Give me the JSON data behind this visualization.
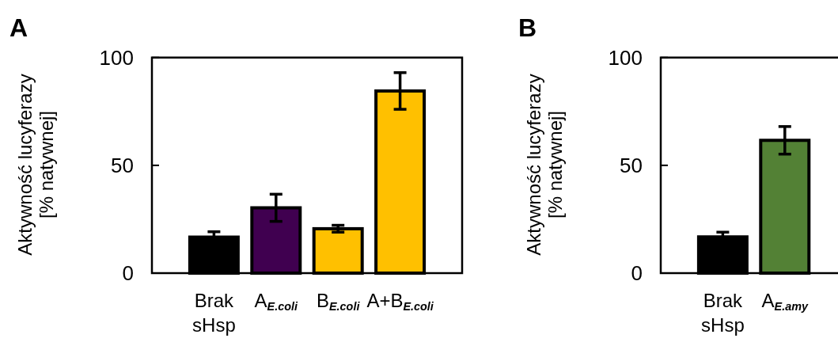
{
  "chart_data": [
    {
      "type": "bar",
      "title": "A",
      "ylabel": "Aktywność lucyferazy\n[% natywnej]",
      "categories": [
        "Brak\nsHsp",
        "A$_{E.coli}$",
        "B$_{E.coli}$",
        "A+B$_{E.coli}$"
      ],
      "colors": [
        "#000000",
        "#400050",
        "#ffc000",
        "#ffc000"
      ],
      "values": [
        16.7,
        30.3,
        20.6,
        84.5
      ],
      "errors": [
        2.5,
        6.3,
        1.6,
        8.5
      ],
      "ylim": [
        0,
        100
      ],
      "yticks": [
        0,
        50,
        100
      ]
    },
    {
      "type": "bar",
      "title": "B",
      "ylabel": "Aktywność lucyferazy\n[% natywnej]",
      "categories": [
        "Brak\nsHsp",
        "A$_{E.amy}$"
      ],
      "colors": [
        "#000000",
        "#538135"
      ],
      "values": [
        16.8,
        61.6
      ],
      "errors": [
        2.2,
        6.4
      ],
      "ylim": [
        0,
        100
      ],
      "yticks": [
        0,
        50,
        100
      ]
    }
  ]
}
